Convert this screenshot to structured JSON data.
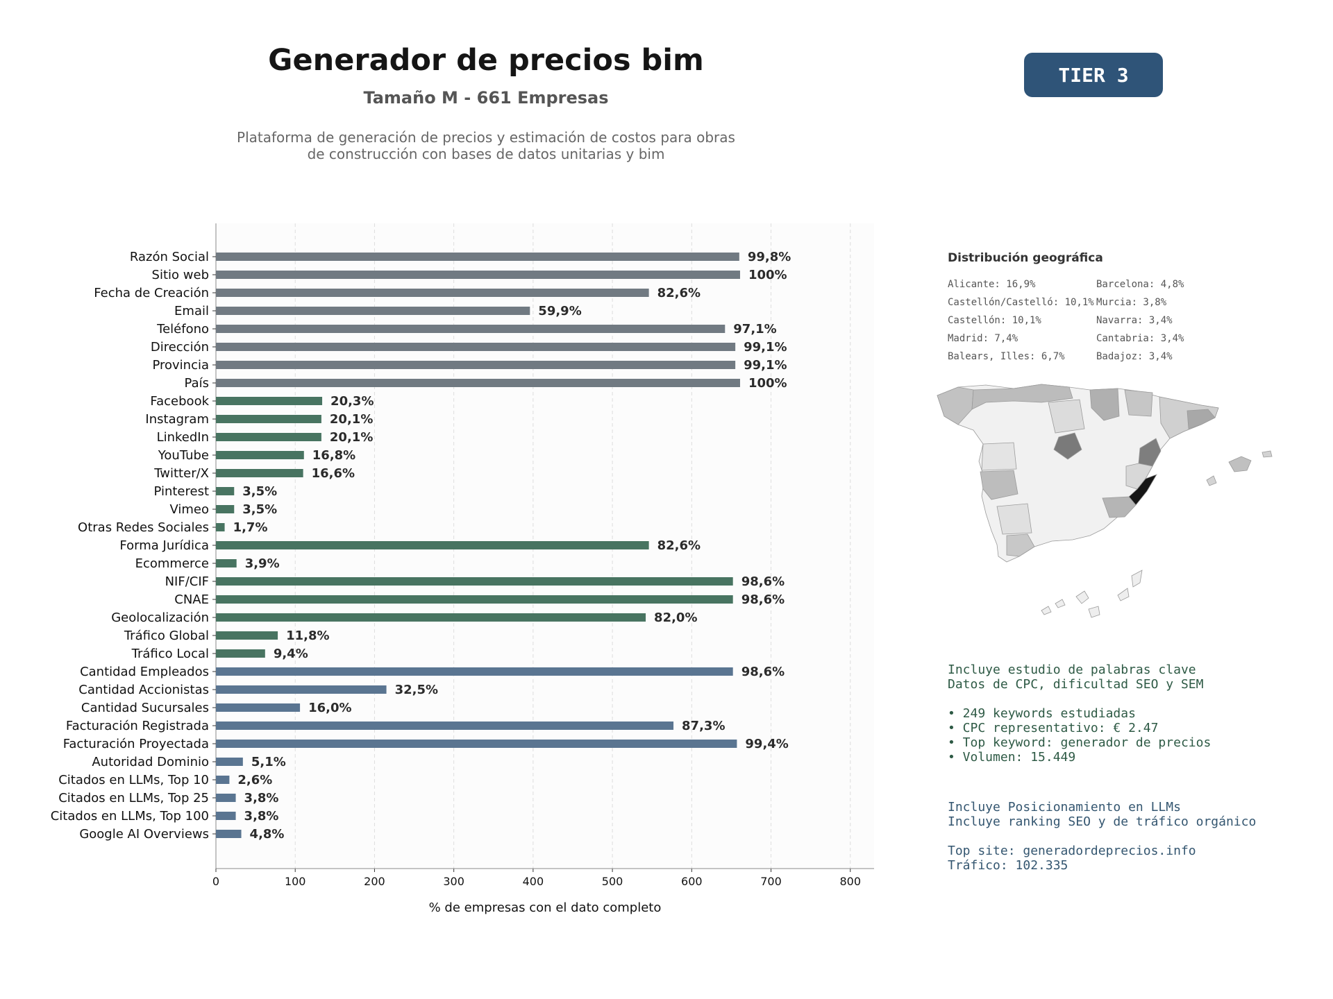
{
  "header": {
    "title": "Generador de precios bim",
    "subtitle": "Tamaño M - 661 Empresas",
    "description_line1": "Plataforma de generación de precios y estimación de costos para obras",
    "description_line2": "de construcción con bases de datos unitarias y bim",
    "tier_badge": "TIER 3"
  },
  "chart_data": {
    "type": "bar",
    "orientation": "horizontal",
    "xlabel": "% de empresas con el dato completo",
    "xlim": [
      0,
      830
    ],
    "xticks": [
      0,
      100,
      200,
      300,
      400,
      500,
      600,
      700,
      800
    ],
    "grid": "vertical-dashed",
    "categories": [
      "Razón Social",
      "Sitio web",
      "Fecha de Creación",
      "Email",
      "Teléfono",
      "Dirección",
      "Provincia",
      "País",
      "Facebook",
      "Instagram",
      "LinkedIn",
      "YouTube",
      "Twitter/X",
      "Pinterest",
      "Vimeo",
      "Otras Redes Sociales",
      "Forma Jurídica",
      "Ecommerce",
      "NIF/CIF",
      "CNAE",
      "Geolocalización",
      "Tráfico Global",
      "Tráfico Local",
      "Cantidad Empleados",
      "Cantidad Accionistas",
      "Cantidad Sucursales",
      "Facturación Registrada",
      "Facturación Proyectada",
      "Autoridad Dominio",
      "Citados en LLMs, Top 10",
      "Citados en LLMs, Top 25",
      "Citados en LLMs, Top 100",
      "Google AI Overviews"
    ],
    "values": [
      660,
      661,
      546,
      396,
      642,
      655,
      655,
      661,
      134,
      133,
      133,
      111,
      110,
      23,
      23,
      11,
      546,
      26,
      652,
      652,
      542,
      78,
      62,
      652,
      215,
      106,
      577,
      657,
      34,
      17,
      25,
      25,
      32
    ],
    "labels": [
      "99,8%",
      "100%",
      "82,6%",
      "59,9%",
      "97,1%",
      "99,1%",
      "99,1%",
      "100%",
      "20,3%",
      "20,1%",
      "20,1%",
      "16,8%",
      "16,6%",
      "3,5%",
      "3,5%",
      "1,7%",
      "82,6%",
      "3,9%",
      "98,6%",
      "98,6%",
      "82,0%",
      "11,8%",
      "9,4%",
      "98,6%",
      "32,5%",
      "16,0%",
      "87,3%",
      "99,4%",
      "5,1%",
      "2,6%",
      "3,8%",
      "3,8%",
      "4,8%"
    ],
    "groups": [
      "basic",
      "basic",
      "basic",
      "basic",
      "basic",
      "basic",
      "basic",
      "basic",
      "social",
      "social",
      "social",
      "social",
      "social",
      "social",
      "social",
      "social",
      "social",
      "social",
      "social",
      "social",
      "social",
      "social",
      "social",
      "financial",
      "financial",
      "financial",
      "financial",
      "financial",
      "financial",
      "financial",
      "financial",
      "financial",
      "financial"
    ],
    "colors": {
      "basic": "#717a82",
      "social": "#487461",
      "financial": "#5a7591"
    }
  },
  "geo": {
    "title": "Distribución geográfica",
    "items": [
      "Alicante: 16,9%",
      "Castellón/Castelló: 10,1%",
      "Castellón: 10,1%",
      "Madrid: 7,4%",
      "Balears, Illes: 6,7%",
      "Barcelona: 4,8%",
      "Murcia: 3,8%",
      "Navarra: 3,4%",
      "Cantabria: 3,4%",
      "Badajoz: 3,4%"
    ]
  },
  "keywords": {
    "line1": "Incluye estudio de palabras clave",
    "line2": "Datos de CPC, dificultad SEO y SEM",
    "bullet1": "• 249 keywords estudiadas",
    "bullet2": "• CPC representativo: € 2.47",
    "bullet3": "• Top keyword: generador de precios",
    "bullet4": "• Volumen: 15.449"
  },
  "llm": {
    "line1": "Incluye Posicionamiento en LLMs",
    "line2": "Incluye ranking SEO y de tráfico orgánico",
    "top_site": "Top site: generadordeprecios.info",
    "traffic": "Tráfico: 102.335"
  }
}
